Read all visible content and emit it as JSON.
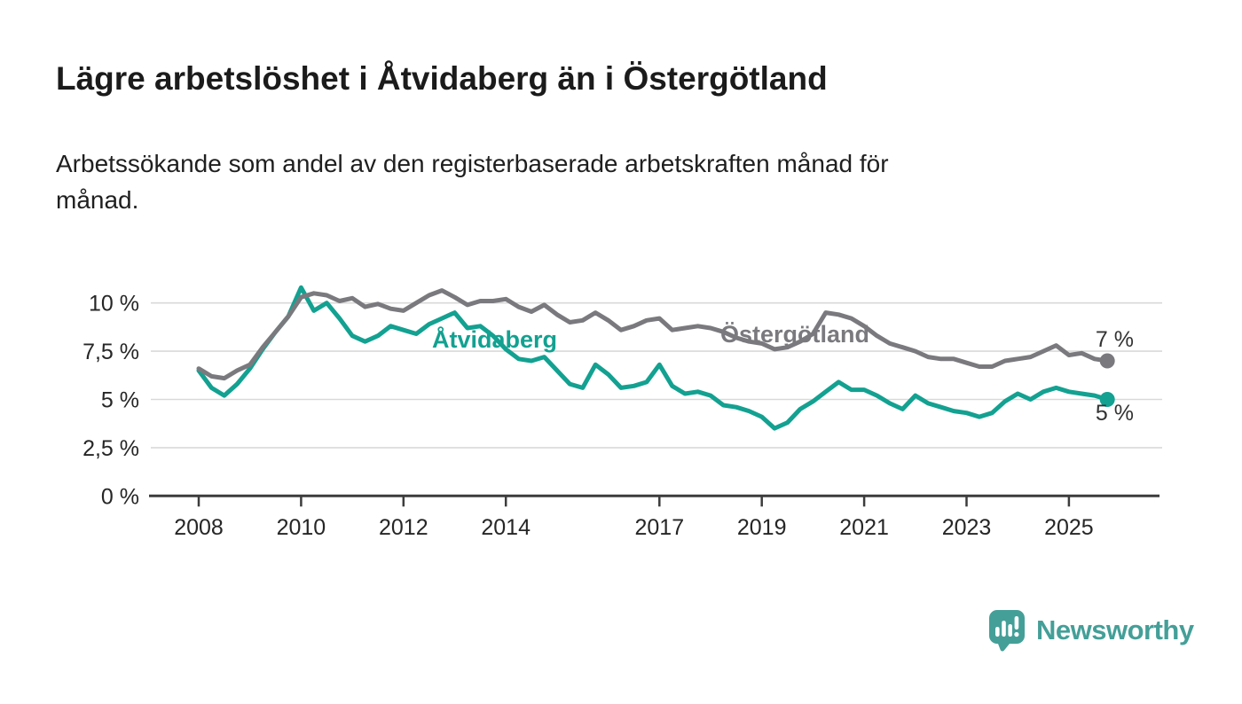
{
  "title": "Lägre arbetslöshet i Åtvidaberg än i Östergötland",
  "subtitle": "Arbetssökande som andel av den registerbaserade arbetskraften månad för månad.",
  "branding": {
    "name": "Newsworthy"
  },
  "colors": {
    "atvidaberg": "#13a191",
    "ostergotland": "#7a7a7e",
    "axis": "#3c3c3c",
    "gridline": "#d9d9d9",
    "tick_label": "#262626",
    "end_label": "#333333",
    "brand_teal": "#449f98"
  },
  "chart_data": {
    "type": "line",
    "title": "Lägre arbetslöshet i Åtvidaberg än i Östergötland",
    "subtitle": "Arbetssökande som andel av den registerbaserade arbetskraften månad för månad.",
    "xlabel": "",
    "ylabel": "",
    "xlim": [
      2007.05,
      2026.8
    ],
    "ylim": [
      0,
      11.2
    ],
    "grid": "horizontal",
    "legend_position": "inline-labels",
    "x_ticks": [
      2008,
      2010,
      2012,
      2014,
      2017,
      2019,
      2021,
      2023,
      2025
    ],
    "y_ticks": [
      {
        "value": 0,
        "label": "0 %"
      },
      {
        "value": 2.5,
        "label": "2,5 %"
      },
      {
        "value": 5,
        "label": "5 %"
      },
      {
        "value": 7.5,
        "label": "7,5 %"
      },
      {
        "value": 10,
        "label": "10 %"
      }
    ],
    "x": [
      2008,
      2008.25,
      2008.5,
      2008.75,
      2009,
      2009.25,
      2009.5,
      2009.75,
      2010,
      2010.25,
      2010.5,
      2010.75,
      2011,
      2011.25,
      2011.5,
      2011.75,
      2012,
      2012.25,
      2012.5,
      2012.75,
      2013,
      2013.25,
      2013.5,
      2013.75,
      2014,
      2014.25,
      2014.5,
      2014.75,
      2015,
      2015.25,
      2015.5,
      2015.75,
      2016,
      2016.25,
      2016.5,
      2016.75,
      2017,
      2017.25,
      2017.5,
      2017.75,
      2018,
      2018.25,
      2018.5,
      2018.75,
      2019,
      2019.25,
      2019.5,
      2019.75,
      2020,
      2020.25,
      2020.5,
      2020.75,
      2021,
      2021.25,
      2021.5,
      2021.75,
      2022,
      2022.25,
      2022.5,
      2022.75,
      2023,
      2023.25,
      2023.5,
      2023.75,
      2024,
      2024.25,
      2024.5,
      2024.75,
      2025,
      2025.25,
      2025.5,
      2025.75
    ],
    "series": [
      {
        "name": "Åtvidaberg",
        "color": "#13a191",
        "end_label": "5 %",
        "end_value": 5.0,
        "values": [
          6.5,
          5.6,
          5.2,
          5.8,
          6.6,
          7.6,
          8.5,
          9.3,
          10.8,
          9.6,
          10.0,
          9.2,
          8.3,
          8.0,
          8.3,
          8.8,
          8.6,
          8.4,
          8.9,
          9.2,
          9.5,
          8.7,
          8.8,
          8.3,
          7.6,
          7.1,
          7.0,
          7.2,
          6.5,
          5.8,
          5.6,
          6.8,
          6.3,
          5.6,
          5.7,
          5.9,
          6.8,
          5.7,
          5.3,
          5.4,
          5.2,
          4.7,
          4.6,
          4.4,
          4.1,
          3.5,
          3.8,
          4.5,
          4.9,
          5.4,
          5.9,
          5.5,
          5.5,
          5.2,
          4.8,
          4.5,
          5.2,
          4.8,
          4.6,
          4.4,
          4.3,
          4.1,
          4.3,
          4.9,
          5.3,
          5.0,
          5.4,
          5.6,
          5.4,
          5.3,
          5.2,
          5.0
        ]
      },
      {
        "name": "Östergötland",
        "color": "#7a7a7e",
        "end_label": "7 %",
        "end_value": 7.0,
        "values": [
          6.6,
          6.2,
          6.1,
          6.5,
          6.8,
          7.7,
          8.5,
          9.3,
          10.3,
          10.5,
          10.4,
          10.1,
          10.25,
          9.8,
          9.95,
          9.7,
          9.6,
          10.0,
          10.4,
          10.65,
          10.3,
          9.9,
          10.1,
          10.1,
          10.2,
          9.8,
          9.55,
          9.9,
          9.4,
          9.0,
          9.1,
          9.5,
          9.1,
          8.6,
          8.8,
          9.1,
          9.2,
          8.6,
          8.7,
          8.8,
          8.7,
          8.5,
          8.2,
          8.0,
          7.9,
          7.6,
          7.7,
          8.0,
          8.4,
          9.5,
          9.4,
          9.2,
          8.8,
          8.3,
          7.9,
          7.7,
          7.5,
          7.2,
          7.1,
          7.1,
          6.9,
          6.7,
          6.7,
          7.0,
          7.1,
          7.2,
          7.5,
          7.8,
          7.3,
          7.4,
          7.1,
          7.0
        ]
      }
    ]
  }
}
